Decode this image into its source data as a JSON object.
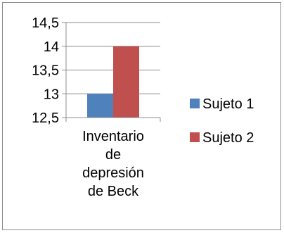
{
  "chart_data": {
    "type": "bar",
    "categories": [
      "Inventario de depresión de Beck"
    ],
    "category_lines": [
      "Inventario",
      "de",
      "depresión",
      "de Beck"
    ],
    "series": [
      {
        "name": "Sujeto 1",
        "values": [
          13
        ],
        "color": "#4f81bd"
      },
      {
        "name": "Sujeto 2",
        "values": [
          14
        ],
        "color": "#c0504d"
      }
    ],
    "ylim": [
      12.5,
      14.5
    ],
    "yticks": [
      12.5,
      13,
      13.5,
      14,
      14.5
    ],
    "ytick_labels": [
      "12,5",
      "13",
      "13,5",
      "14",
      "14,5"
    ],
    "title": "",
    "xlabel": "",
    "ylabel": "",
    "grid": true,
    "legend_position": "right"
  }
}
